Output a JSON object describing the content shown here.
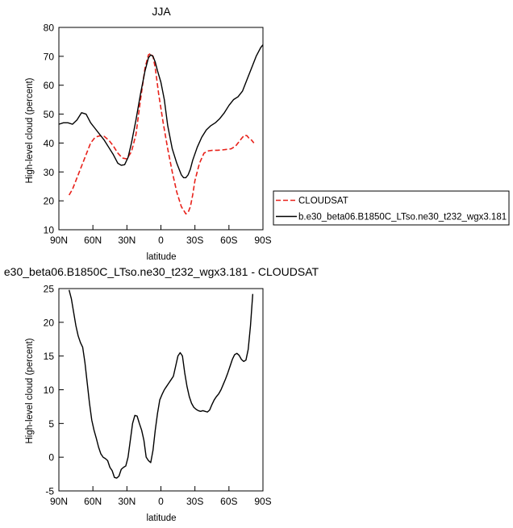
{
  "chart_data": [
    {
      "type": "line",
      "title": "JJA",
      "xlabel": "",
      "ylabel": "High-level cloud (percent)",
      "xlim": [
        90,
        -90
      ],
      "ylim": [
        10,
        80
      ],
      "x_ticks": [
        90,
        60,
        30,
        0,
        -30,
        -60,
        -90
      ],
      "x_tick_labels": [
        "90N",
        "60N",
        "30N",
        "0",
        "30S",
        "60S",
        "90S"
      ],
      "y_ticks": [
        10,
        20,
        30,
        40,
        50,
        60,
        70,
        80
      ],
      "y_tick_labels": [
        "10",
        "20",
        "30",
        "40",
        "50",
        "60",
        "70",
        "80"
      ],
      "grid": false,
      "legend": "outside-right",
      "series": [
        {
          "name": "CLOUDSAT",
          "color": "#e8211a",
          "dash": true,
          "x": [
            81,
            78,
            74,
            70,
            66,
            62,
            58,
            54,
            50,
            46,
            42,
            38,
            34,
            30,
            26,
            22,
            18,
            14,
            11,
            9,
            7,
            5,
            2,
            -2,
            -6,
            -10,
            -14,
            -18,
            -22,
            -24,
            -26,
            -28,
            -30,
            -34,
            -38,
            -42,
            -46,
            -50,
            -54,
            -58,
            -62,
            -66,
            -70,
            -72,
            -74,
            -76,
            -78,
            -80,
            -82
          ],
          "y": [
            22,
            24,
            28,
            32,
            36,
            40,
            42,
            42.5,
            42.3,
            41,
            39,
            36.5,
            34.8,
            34.5,
            37,
            43,
            55,
            66,
            70.5,
            71,
            70,
            66,
            57,
            47,
            38,
            30,
            23,
            18,
            15.5,
            16,
            18,
            22,
            27,
            33,
            36.5,
            37.3,
            37.5,
            37.5,
            37.6,
            37.8,
            38,
            39,
            41,
            42,
            42.7,
            42.5,
            41.5,
            41,
            40
          ]
        },
        {
          "name": "b.e30_beta06.B1850C_LTso.ne30_t232_wgx3.181",
          "color": "#000000",
          "dash": false,
          "x": [
            90,
            86,
            82,
            78,
            74,
            70,
            66,
            62,
            58,
            54,
            50,
            46,
            42,
            38,
            35,
            32,
            29,
            26,
            22,
            18,
            14,
            11,
            9,
            7,
            5,
            3,
            0,
            -3,
            -6,
            -10,
            -14,
            -18,
            -20,
            -22,
            -24,
            -26,
            -28,
            -32,
            -36,
            -40,
            -44,
            -48,
            -52,
            -56,
            -60,
            -64,
            -68,
            -72,
            -76,
            -80,
            -84,
            -88,
            -90
          ],
          "y": [
            46.5,
            47,
            47,
            46.5,
            48,
            50.5,
            50,
            47,
            45,
            43,
            41,
            38.5,
            36,
            33,
            32.3,
            32.5,
            35,
            40,
            48,
            57,
            65,
            69.5,
            70.5,
            70,
            68,
            65,
            61,
            55,
            46,
            38,
            33,
            29,
            28,
            28,
            29,
            31,
            34,
            38.5,
            42,
            44.5,
            46,
            47,
            48.5,
            50.5,
            53,
            55,
            56,
            58,
            62,
            66,
            70,
            73,
            74
          ]
        }
      ]
    },
    {
      "type": "line",
      "title": "e30_beta06.B1850C_LTso.ne30_t232_wgx3.181 - CLOUDSAT",
      "xlabel": "latitude",
      "ylabel": "High-level cloud (percent)",
      "xlim": [
        90,
        -90
      ],
      "ylim": [
        -5,
        25
      ],
      "x_ticks": [
        90,
        60,
        30,
        0,
        -30,
        -60,
        -90
      ],
      "x_tick_labels": [
        "90N",
        "60N",
        "30N",
        "0",
        "30S",
        "60S",
        "90S"
      ],
      "y_ticks": [
        -5,
        0,
        5,
        10,
        15,
        20,
        25
      ],
      "y_tick_labels": [
        "-5",
        "0",
        "5",
        "10",
        "15",
        "20",
        "25"
      ],
      "grid": false,
      "series": [
        {
          "color": "#000000",
          "dash": false,
          "x": [
            81,
            79,
            77,
            75,
            73,
            71,
            69,
            67,
            65,
            63,
            61,
            59,
            57,
            55,
            53,
            51,
            49,
            47,
            45,
            43,
            41,
            39,
            37,
            35,
            33,
            31,
            29,
            27,
            25,
            23,
            21,
            19,
            17,
            15,
            13,
            11,
            9,
            7,
            5,
            3,
            1,
            -1,
            -3,
            -5,
            -7,
            -9,
            -11,
            -13,
            -15,
            -17,
            -19,
            -21,
            -23,
            -25,
            -27,
            -29,
            -31,
            -33,
            -35,
            -37,
            -39,
            -41,
            -43,
            -45,
            -47,
            -49,
            -51,
            -53,
            -55,
            -57,
            -59,
            -61,
            -63,
            -65,
            -67,
            -69,
            -71,
            -73,
            -75,
            -77,
            -79,
            -81
          ],
          "y": [
            24.8,
            23.5,
            21.5,
            19.5,
            18,
            17,
            16.3,
            14,
            11,
            8,
            5.5,
            4,
            2.8,
            1.5,
            0.5,
            0,
            -0.2,
            -0.5,
            -1.5,
            -2,
            -3,
            -3.1,
            -2.8,
            -1.8,
            -1.5,
            -1.3,
            0,
            2.5,
            5,
            6.2,
            6.1,
            5,
            4,
            2.5,
            0,
            -0.5,
            -0.8,
            1,
            4,
            6.5,
            8.5,
            9.3,
            10,
            10.5,
            11,
            11.5,
            12,
            13.5,
            15,
            15.5,
            15,
            12.5,
            10.5,
            9,
            8,
            7.4,
            7.1,
            6.9,
            6.8,
            6.9,
            6.8,
            6.7,
            7,
            7.8,
            8.5,
            9,
            9.4,
            10,
            10.8,
            11.6,
            12.5,
            13.5,
            14.5,
            15.2,
            15.4,
            15.1,
            14.5,
            14.2,
            14.4,
            16,
            19.5,
            24.2
          ]
        }
      ]
    }
  ]
}
